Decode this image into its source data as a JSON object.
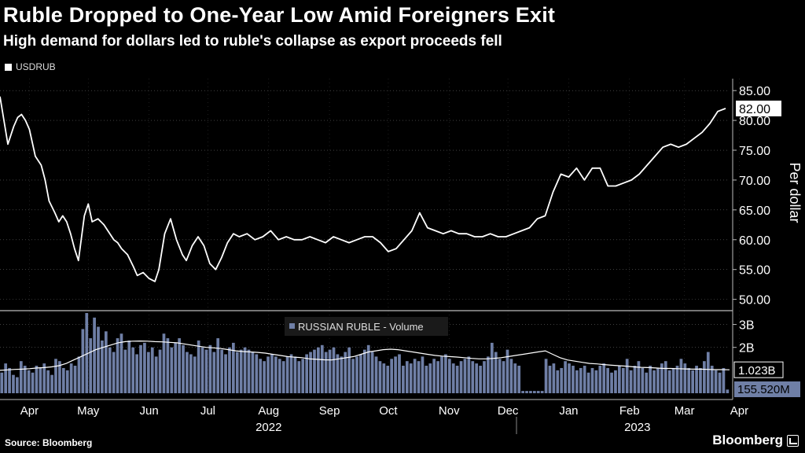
{
  "header": {
    "title": "Ruble Dropped to One-Year Low Amid Foreigners Exit",
    "subtitle": "High demand for dollars led to ruble's collapse as export proceeds fell"
  },
  "footer": {
    "source": "Source: Bloomberg",
    "brand": "Bloomberg"
  },
  "colors": {
    "background": "#000000",
    "price_line": "#ffffff",
    "volume_bar": "#6f7fa6",
    "grid": "#666666"
  },
  "chart_data": [
    {
      "type": "line",
      "legend": "USDRUB",
      "ylabel": "Per dollar",
      "ylim": [
        48.5,
        87
      ],
      "yticks": [
        85,
        80,
        75,
        70,
        65,
        60,
        55,
        50
      ],
      "ytick_labels": [
        "85.00",
        "80.00",
        "75.00",
        "70.00",
        "65.00",
        "60.00",
        "55.00",
        "50.00"
      ],
      "last_value_label": "82.00",
      "last_value": 82.0,
      "x_start": "2022-04-01",
      "x_end": "2023-04-06",
      "series": [
        {
          "name": "USDRUB",
          "x": [
            0,
            4,
            7,
            9,
            11,
            13,
            15,
            18,
            21,
            23,
            25,
            28,
            30,
            32,
            34,
            36,
            38,
            40,
            43,
            45,
            47,
            50,
            53,
            55,
            58,
            60,
            62,
            65,
            68,
            70,
            73,
            76,
            79,
            81,
            84,
            87,
            90,
            93,
            95,
            98,
            101,
            104,
            107,
            110,
            113,
            116,
            119,
            122,
            126,
            130,
            134,
            138,
            142,
            146,
            150,
            154,
            158,
            162,
            166,
            170,
            174,
            178,
            182,
            186,
            190,
            194,
            198,
            202,
            206,
            210,
            214,
            218,
            222,
            226,
            230,
            234,
            238,
            242,
            246,
            250,
            254,
            258,
            262,
            266,
            270,
            274,
            278,
            282,
            286,
            290,
            294,
            298,
            302,
            306,
            310,
            314,
            318,
            322,
            326,
            330,
            334,
            338,
            342,
            346,
            350,
            354,
            358,
            362,
            366,
            370
          ],
          "values": [
            84.0,
            76.0,
            79.0,
            80.5,
            81.0,
            80.0,
            78.5,
            74.0,
            72.5,
            70.0,
            66.5,
            64.5,
            63.0,
            64.0,
            63.0,
            61.0,
            58.5,
            56.5,
            64.0,
            66.0,
            63.0,
            63.5,
            62.5,
            61.5,
            60.0,
            59.5,
            58.5,
            57.5,
            55.5,
            54.0,
            54.5,
            53.5,
            53.0,
            55.0,
            61.0,
            63.5,
            60.0,
            57.5,
            56.5,
            59.0,
            60.5,
            59.0,
            56.0,
            55.0,
            57.0,
            59.5,
            61.0,
            60.5,
            61.0,
            60.0,
            60.5,
            61.5,
            60.0,
            60.5,
            60.0,
            60.0,
            60.5,
            60.0,
            59.5,
            60.5,
            60.0,
            59.5,
            60.0,
            60.5,
            60.5,
            59.5,
            58.0,
            58.5,
            60.0,
            61.5,
            64.5,
            62.0,
            61.5,
            61.0,
            61.5,
            61.0,
            61.0,
            60.5,
            60.5,
            61.0,
            60.5,
            60.5,
            61.0,
            61.5,
            62.0,
            63.5,
            64.0,
            68.0,
            71.0,
            70.5,
            72.0,
            70.0,
            72.0,
            72.0,
            69.0,
            69.0,
            69.5,
            70.0,
            71.0,
            72.5,
            74.0,
            75.5,
            76.0,
            75.5,
            76.0,
            77.0,
            78.0,
            79.5,
            81.5,
            82.0
          ]
        }
      ]
    },
    {
      "type": "bar",
      "legend": "RUSSIAN RUBLE - Volume",
      "ylim": [
        0,
        3.5
      ],
      "yticks": [
        3,
        2
      ],
      "ytick_labels": [
        "3B",
        "2B"
      ],
      "moving_avg_label": "1.023B",
      "moving_avg_last": 1.023,
      "last_bar_label": "155.520M",
      "last_bar": 0.1555,
      "unit": "B",
      "series": [
        {
          "name": "Volume",
          "values": [
            0.9,
            1.3,
            1.1,
            0.8,
            0.7,
            1.4,
            1.2,
            1.0,
            0.9,
            1.2,
            1.1,
            1.3,
            1.0,
            0.8,
            1.5,
            1.4,
            1.1,
            1.0,
            1.3,
            1.2,
            1.6,
            2.8,
            3.5,
            2.4,
            3.3,
            2.9,
            2.3,
            2.7,
            2.0,
            1.8,
            2.4,
            2.6,
            1.9,
            2.3,
            2.0,
            1.7,
            2.1,
            2.2,
            1.8,
            2.0,
            1.6,
            1.9,
            2.6,
            2.4,
            2.0,
            2.2,
            2.4,
            2.1,
            1.8,
            1.7,
            1.6,
            2.3,
            2.0,
            1.9,
            2.1,
            1.8,
            2.4,
            1.9,
            1.7,
            2.0,
            2.2,
            1.8,
            1.9,
            2.0,
            1.9,
            1.8,
            1.7,
            1.5,
            1.4,
            1.6,
            1.7,
            1.6,
            1.5,
            1.4,
            1.6,
            1.7,
            1.6,
            1.4,
            1.5,
            1.7,
            1.8,
            1.9,
            2.0,
            2.1,
            1.8,
            1.9,
            2.0,
            1.7,
            1.6,
            1.8,
            2.0,
            1.5,
            1.6,
            1.7,
            1.9,
            2.1,
            1.8,
            1.6,
            1.4,
            1.3,
            1.2,
            1.5,
            1.6,
            1.7,
            1.2,
            1.4,
            1.3,
            1.5,
            1.4,
            1.6,
            1.2,
            1.3,
            1.5,
            1.4,
            1.6,
            1.7,
            1.5,
            1.3,
            1.2,
            1.4,
            1.5,
            1.6,
            1.4,
            1.3,
            1.2,
            1.4,
            1.6,
            2.2,
            1.8,
            1.5,
            1.4,
            1.9,
            1.5,
            1.3,
            1.2,
            0.1,
            0.1,
            0.1,
            0.1,
            0.1,
            0.1,
            1.5,
            1.2,
            1.3,
            1.0,
            1.1,
            1.4,
            1.3,
            1.2,
            1.0,
            1.1,
            1.2,
            0.9,
            1.1,
            1.0,
            1.2,
            1.3,
            1.1,
            0.9,
            1.0,
            1.2,
            1.1,
            1.5,
            1.0,
            1.2,
            1.4,
            1.1,
            0.9,
            1.2,
            1.0,
            1.1,
            1.3,
            1.4,
            1.0,
            1.1,
            1.2,
            1.5,
            1.3,
            1.1,
            1.0,
            1.2,
            1.1,
            1.4,
            1.8,
            1.2,
            1.0,
            0.9,
            1.1,
            0.16
          ],
          "moving_avg": [
            1.0,
            1.02,
            1.04,
            1.05,
            1.07,
            1.1,
            1.12,
            1.15,
            1.2,
            1.3,
            1.45,
            1.6,
            1.75,
            1.9,
            2.0,
            2.1,
            2.2,
            2.25,
            2.27,
            2.28,
            2.27,
            2.25,
            2.24,
            2.22,
            2.2,
            2.15,
            2.1,
            2.05,
            2.0,
            1.98,
            1.95,
            1.9,
            1.85,
            1.82,
            1.8,
            1.78,
            1.75,
            1.7,
            1.65,
            1.6,
            1.57,
            1.55,
            1.5,
            1.48,
            1.46,
            1.45,
            1.5,
            1.55,
            1.6,
            1.7,
            1.8,
            1.85,
            1.9,
            1.92,
            1.9,
            1.85,
            1.8,
            1.75,
            1.7,
            1.65,
            1.62,
            1.6,
            1.58,
            1.55,
            1.52,
            1.5,
            1.5,
            1.52,
            1.55,
            1.6,
            1.65,
            1.7,
            1.75,
            1.8,
            1.85,
            1.7,
            1.55,
            1.45,
            1.4,
            1.35,
            1.3,
            1.28,
            1.25,
            1.22,
            1.2,
            1.18,
            1.15,
            1.13,
            1.12,
            1.1,
            1.08,
            1.08,
            1.07,
            1.06,
            1.05,
            1.05,
            1.04,
            1.03,
            1.03,
            1.023
          ]
        }
      ]
    }
  ],
  "x_axis": {
    "months": [
      "Apr",
      "May",
      "Jun",
      "Jul",
      "Aug",
      "Sep",
      "Oct",
      "Nov",
      "Dec",
      "Jan",
      "Feb",
      "Mar",
      "Apr"
    ],
    "month_days": [
      15,
      45,
      76,
      106,
      137,
      168,
      198,
      229,
      259,
      290,
      321,
      349,
      377
    ],
    "years": [
      "2022",
      "2023"
    ],
    "year_days": [
      137,
      325
    ]
  }
}
